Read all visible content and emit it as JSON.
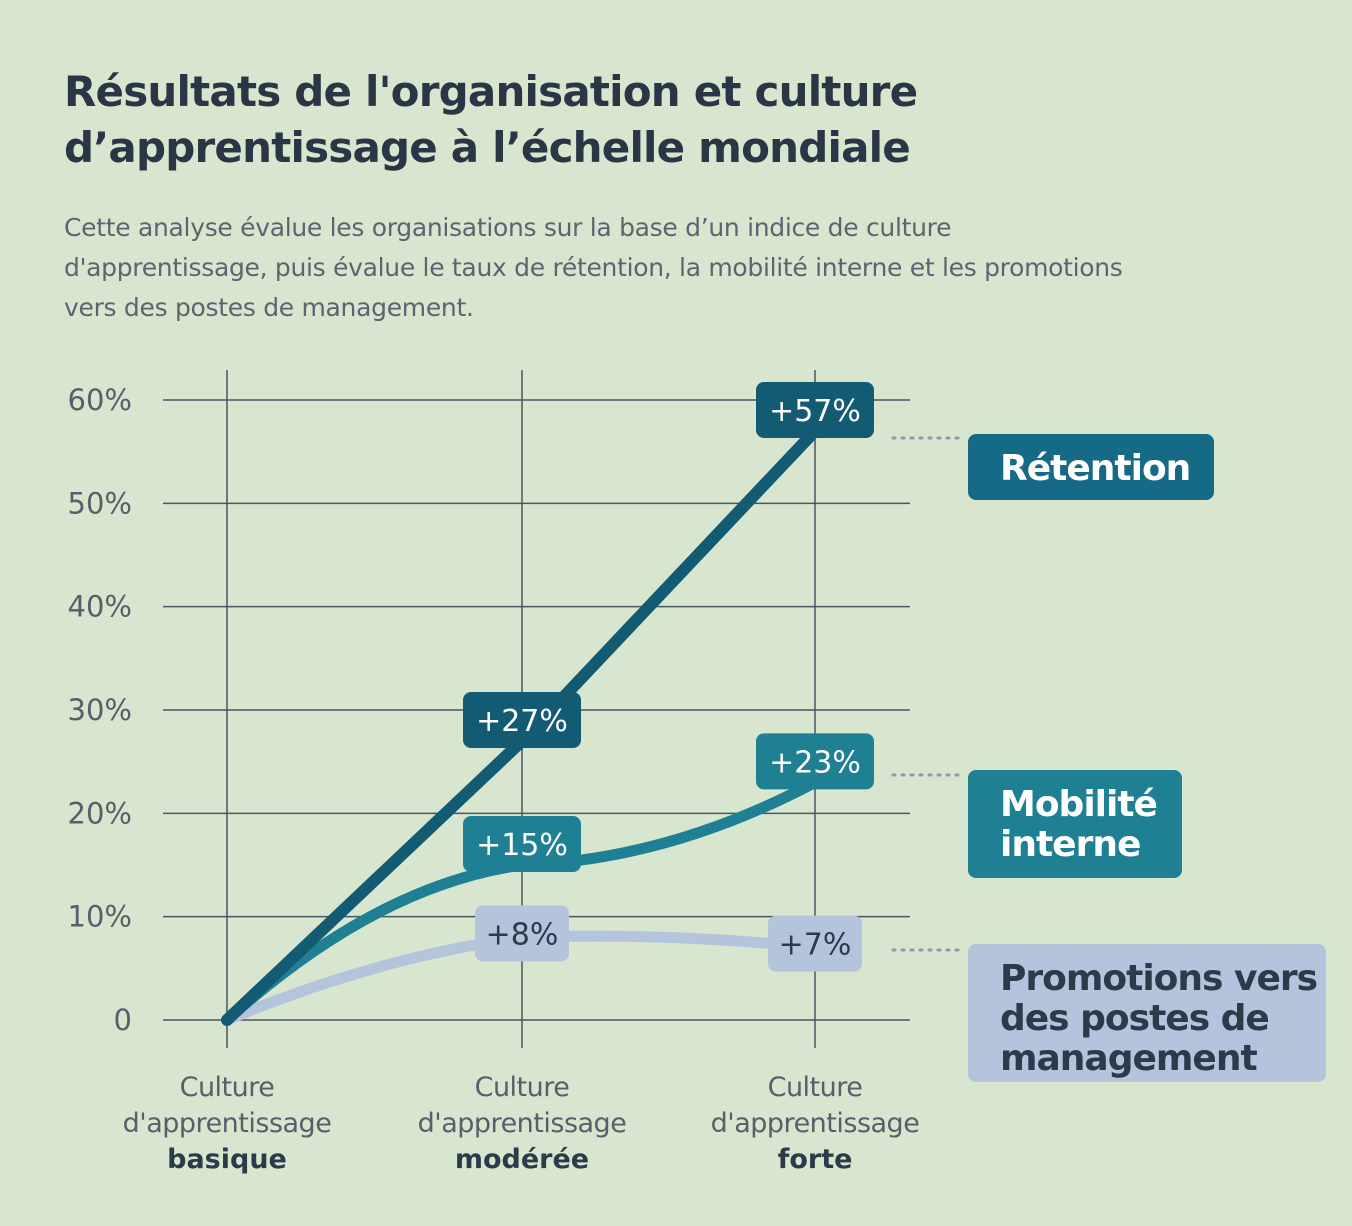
{
  "title_lines": [
    "Résultats de l'organisation et culture",
    "d’apprentissage à l’échelle mondiale"
  ],
  "subtitle_lines": [
    "Cette analyse évalue les organisations sur la base d’un indice de culture",
    "d'apprentissage, puis évalue le taux de rétention, la mobilité interne et les promotions",
    "vers des postes de management."
  ],
  "colors": {
    "background": "#d8e6cf",
    "retention": "#166a85",
    "retention_dark": "#135a73",
    "mobilite": "#1f7f93",
    "promotions": "#b4c4dc",
    "promotions_text": "#2c3b4a",
    "grid": "#4a5561",
    "tick_text": "#56606b"
  },
  "chart_data": {
    "type": "line",
    "title": "Résultats de l'organisation et culture d’apprentissage à l’échelle mondiale",
    "x": [
      {
        "lines": [
          "Culture",
          "d'apprentissage"
        ],
        "bold": "basique"
      },
      {
        "lines": [
          "Culture",
          "d'apprentissage"
        ],
        "bold": "modérée"
      },
      {
        "lines": [
          "Culture",
          "d'apprentissage"
        ],
        "bold": "forte"
      }
    ],
    "yticks": [
      "0",
      "10%",
      "20%",
      "30%",
      "40%",
      "50%",
      "60%"
    ],
    "ylim": [
      0,
      60
    ],
    "grid": true,
    "series": [
      {
        "key": "retention",
        "name_lines": [
          "Rétention"
        ],
        "values": [
          0,
          27,
          57
        ],
        "labels": [
          "",
          "+27%",
          "+57%"
        ]
      },
      {
        "key": "mobilite",
        "name_lines": [
          "Mobilité",
          "interne"
        ],
        "values": [
          0,
          15,
          23
        ],
        "labels": [
          "",
          "+15%",
          "+23%"
        ]
      },
      {
        "key": "promotions",
        "name_lines": [
          "Promotions vers",
          "des postes de",
          "management"
        ],
        "values": [
          0,
          8,
          7
        ],
        "labels": [
          "",
          "+8%",
          "+7%"
        ]
      }
    ]
  }
}
